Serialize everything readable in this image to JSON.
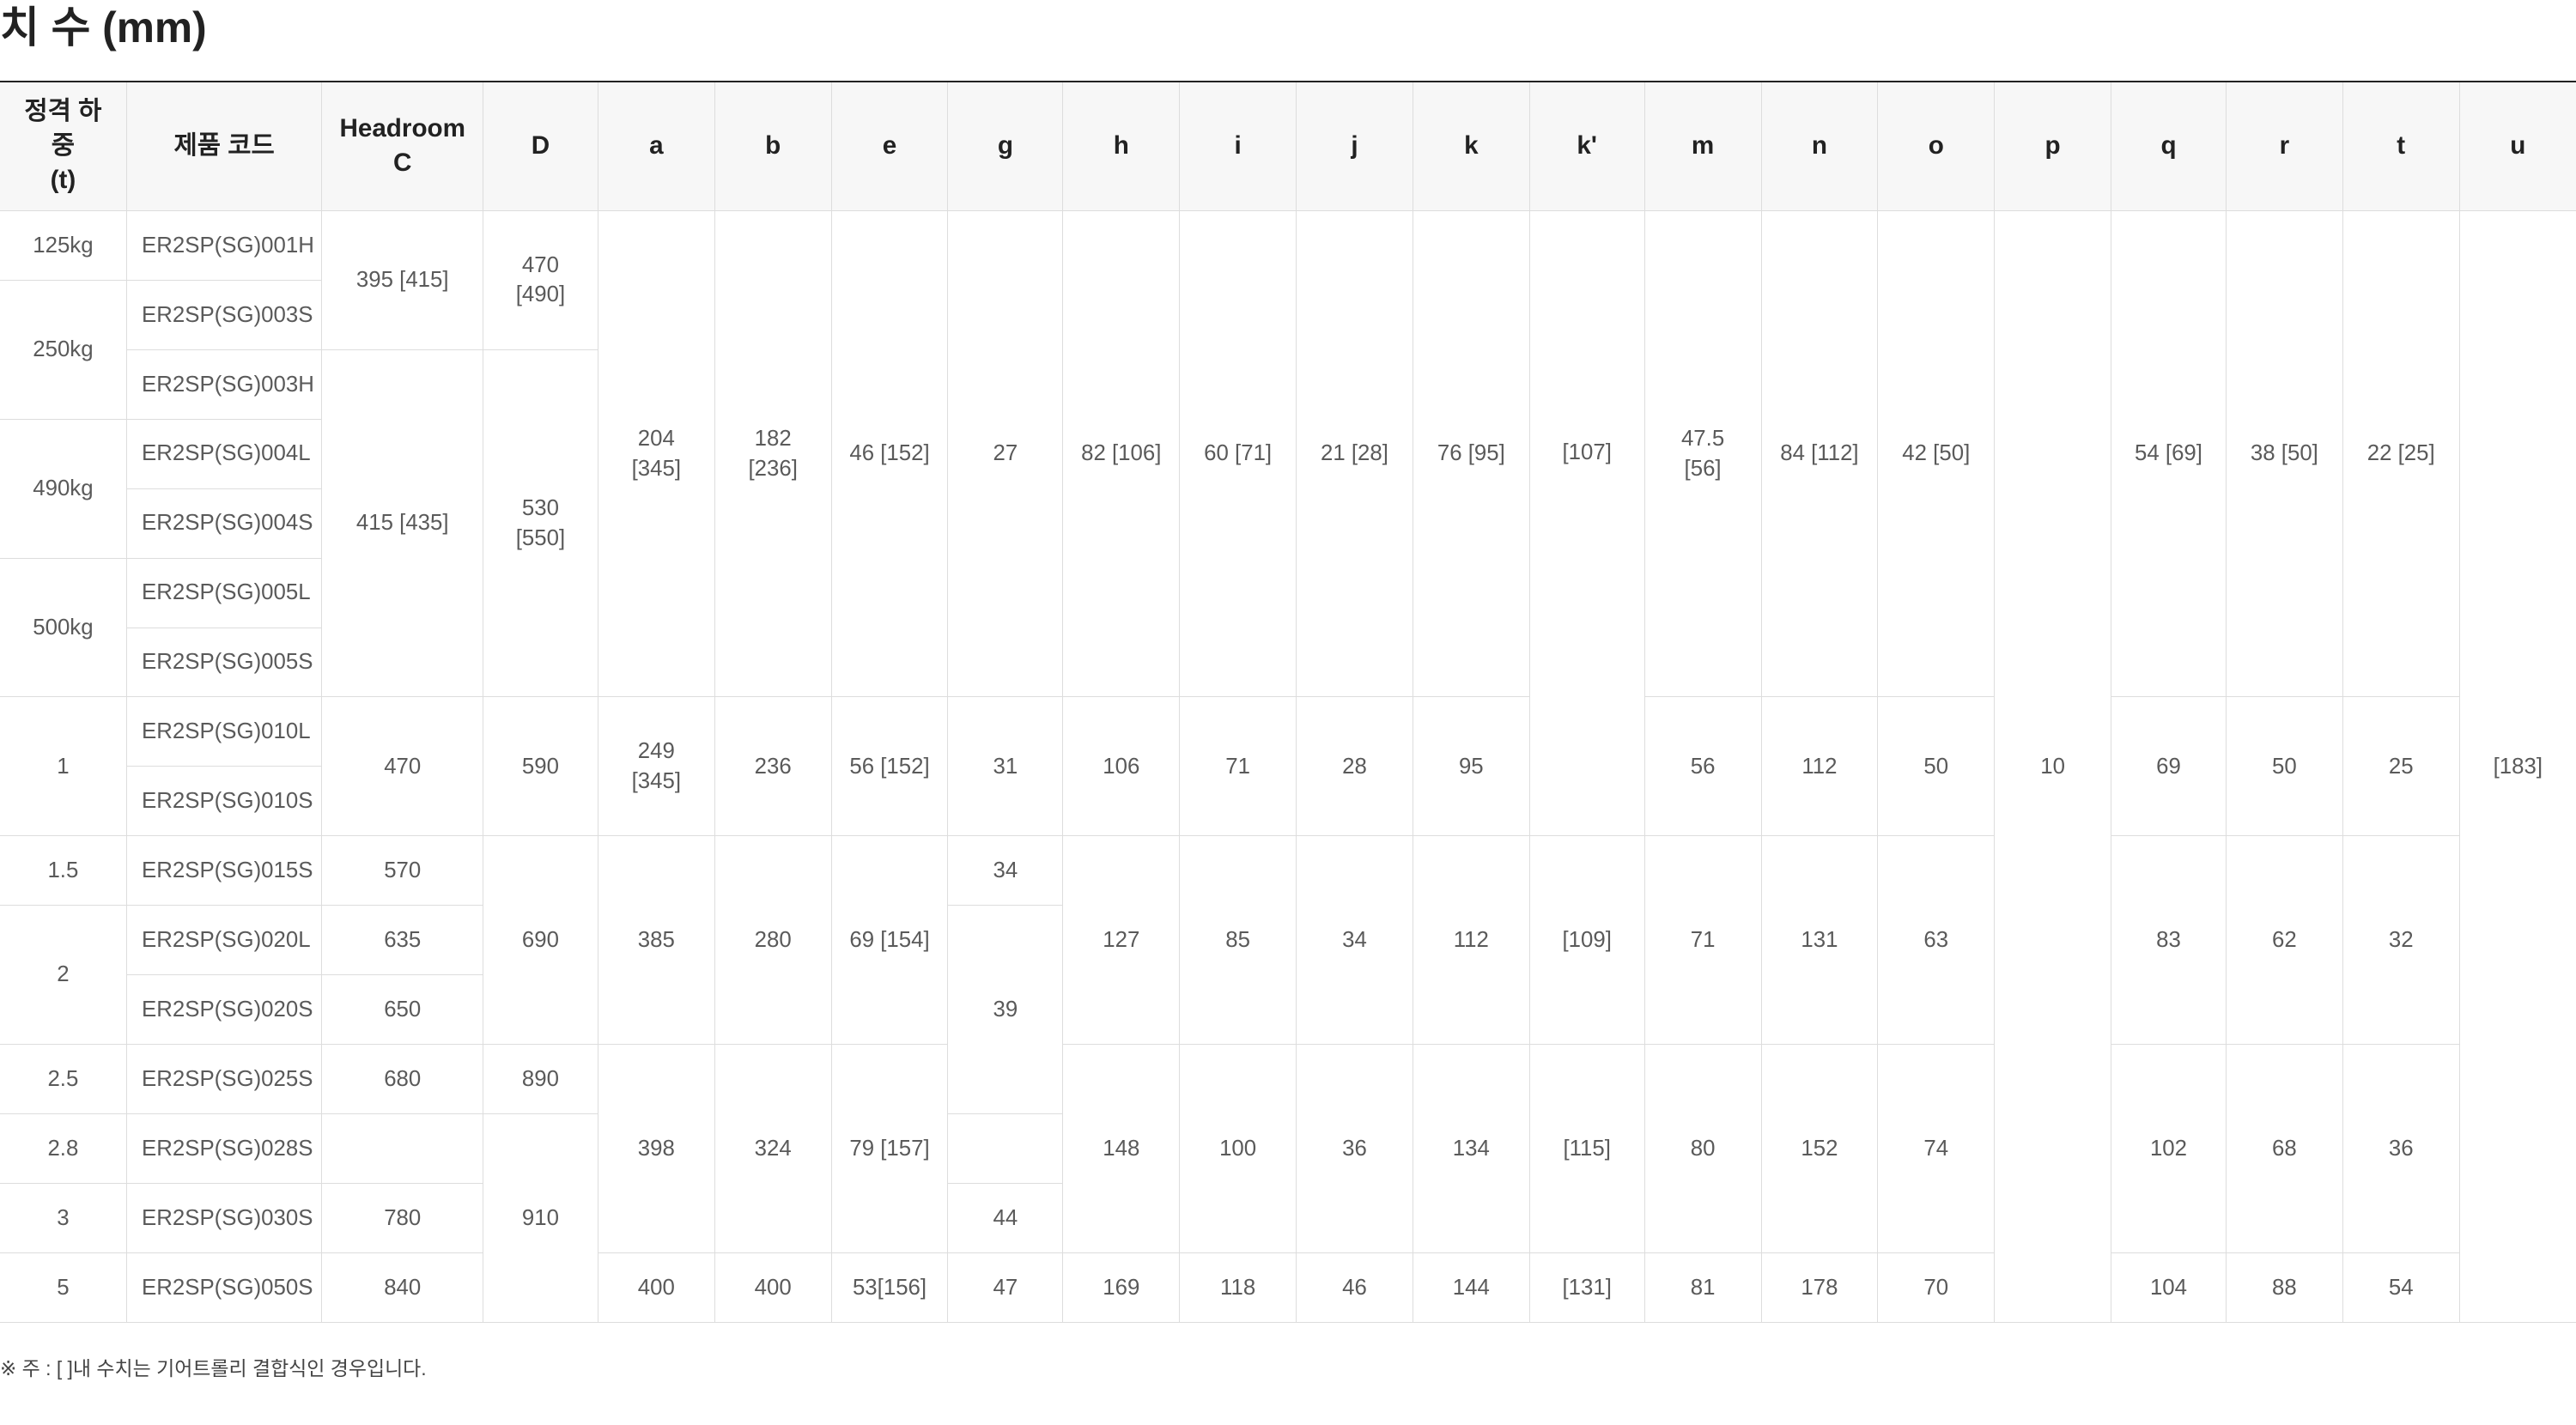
{
  "title": "치 수 (mm)",
  "table": {
    "headers": [
      "정격 하중\n(t)",
      "제품 코드",
      "Headroom\nC",
      "D",
      "a",
      "b",
      "e",
      "g",
      "h",
      "i",
      "j",
      "k",
      "k'",
      "m",
      "n",
      "o",
      "p",
      "q",
      "r",
      "t",
      "u"
    ],
    "rows": [
      [
        {
          "t": "125kg",
          "rs": 1
        },
        {
          "t": "ER2SP(SG)001H",
          "rs": 1
        },
        {
          "t": "395 [415]",
          "rs": 2
        },
        {
          "t": "470 [490]",
          "rs": 2
        },
        {
          "t": "204 [345]",
          "rs": 7
        },
        {
          "t": "182 [236]",
          "rs": 7
        },
        {
          "t": "46 [152]",
          "rs": 7
        },
        {
          "t": "27",
          "rs": 7
        },
        {
          "t": "82 [106]",
          "rs": 7
        },
        {
          "t": "60 [71]",
          "rs": 7
        },
        {
          "t": "21 [28]",
          "rs": 7
        },
        {
          "t": "76 [95]",
          "rs": 7
        },
        {
          "t": "[107]",
          "rs": 9,
          "kp": true
        },
        {
          "t": "47.5 [56]",
          "rs": 7
        },
        {
          "t": "84 [112]",
          "rs": 7
        },
        {
          "t": "42 [50]",
          "rs": 7
        },
        {
          "t": "10",
          "rs": 16
        },
        {
          "t": "54 [69]",
          "rs": 7
        },
        {
          "t": "38 [50]",
          "rs": 7
        },
        {
          "t": "22 [25]",
          "rs": 7
        },
        {
          "t": "[183]",
          "rs": 16
        }
      ],
      [
        {
          "t": "250kg",
          "rs": 2
        },
        {
          "t": "ER2SP(SG)003S",
          "rs": 1
        }
      ],
      [
        {
          "t": "ER2SP(SG)003H",
          "rs": 1
        },
        {
          "t": "415 [435]",
          "rs": 5
        },
        {
          "t": "530 [550]",
          "rs": 5
        }
      ],
      [
        {
          "t": "490kg",
          "rs": 2
        },
        {
          "t": "ER2SP(SG)004L",
          "rs": 1
        }
      ],
      [
        {
          "t": "ER2SP(SG)004S",
          "rs": 1
        }
      ],
      [
        {
          "t": "500kg",
          "rs": 2
        },
        {
          "t": "ER2SP(SG)005L",
          "rs": 1
        }
      ],
      [
        {
          "t": "ER2SP(SG)005S",
          "rs": 1
        }
      ],
      [
        {
          "t": "1",
          "rs": 2
        },
        {
          "t": "ER2SP(SG)010L",
          "rs": 1
        },
        {
          "t": "470",
          "rs": 2
        },
        {
          "t": "590",
          "rs": 2
        },
        {
          "t": "249 [345]",
          "rs": 2
        },
        {
          "t": "236",
          "rs": 2
        },
        {
          "t": "56 [152]",
          "rs": 2
        },
        {
          "t": "31",
          "rs": 2
        },
        {
          "t": "106",
          "rs": 2
        },
        {
          "t": "71",
          "rs": 2
        },
        {
          "t": "28",
          "rs": 2
        },
        {
          "t": "95",
          "rs": 2
        },
        {
          "t": "56",
          "rs": 2
        },
        {
          "t": "112",
          "rs": 2
        },
        {
          "t": "50",
          "rs": 2
        },
        {
          "t": "69",
          "rs": 2
        },
        {
          "t": "50",
          "rs": 2
        },
        {
          "t": "25",
          "rs": 2
        }
      ],
      [
        {
          "t": "ER2SP(SG)010S",
          "rs": 1
        }
      ],
      [
        {
          "t": "1.5",
          "rs": 1
        },
        {
          "t": "ER2SP(SG)015S",
          "rs": 1
        },
        {
          "t": "570",
          "rs": 1
        },
        {
          "t": "690",
          "rs": 3
        },
        {
          "t": "385",
          "rs": 3
        },
        {
          "t": "280",
          "rs": 3
        },
        {
          "t": "69 [154]",
          "rs": 3
        },
        {
          "t": "34",
          "rs": 1
        },
        {
          "t": "127",
          "rs": 3
        },
        {
          "t": "85",
          "rs": 3
        },
        {
          "t": "34",
          "rs": 3
        },
        {
          "t": "112",
          "rs": 3
        },
        {
          "t": "[109]",
          "rs": 3
        },
        {
          "t": "71",
          "rs": 3
        },
        {
          "t": "131",
          "rs": 3
        },
        {
          "t": "63",
          "rs": 3
        },
        {
          "t": "83",
          "rs": 3
        },
        {
          "t": "62",
          "rs": 3
        },
        {
          "t": "32",
          "rs": 3
        }
      ],
      [
        {
          "t": "2",
          "rs": 2
        },
        {
          "t": "ER2SP(SG)020L",
          "rs": 1
        },
        {
          "t": "635",
          "rs": 1
        },
        {
          "t": "39",
          "rs": 3
        }
      ],
      [
        {
          "t": "ER2SP(SG)020S",
          "rs": 1
        },
        {
          "t": "650",
          "rs": 1
        }
      ],
      [
        {
          "t": "2.5",
          "rs": 1
        },
        {
          "t": "ER2SP(SG)025S",
          "rs": 1
        },
        {
          "t": "680",
          "rs": 1
        },
        {
          "t": "890",
          "rs": 1
        },
        {
          "t": "398",
          "rs": 3
        },
        {
          "t": "324",
          "rs": 3
        },
        {
          "t": "79 [157]",
          "rs": 3
        },
        {
          "t": "148",
          "rs": 3
        },
        {
          "t": "100",
          "rs": 3
        },
        {
          "t": "36",
          "rs": 3
        },
        {
          "t": "134",
          "rs": 3
        },
        {
          "t": "[115]",
          "rs": 3
        },
        {
          "t": "80",
          "rs": 3
        },
        {
          "t": "152",
          "rs": 3
        },
        {
          "t": "74",
          "rs": 3
        },
        {
          "t": "102",
          "rs": 3
        },
        {
          "t": "68",
          "rs": 3
        },
        {
          "t": "36",
          "rs": 3
        }
      ],
      [
        {
          "t": "2.8",
          "rs": 1
        },
        {
          "t": "ER2SP(SG)028S",
          "rs": 1
        },
        {
          "t": "",
          "rs": 1
        },
        {
          "t": "910",
          "rs": 3
        },
        {
          "t": "",
          "rs": 1
        }
      ],
      [
        {
          "t": "3",
          "rs": 1
        },
        {
          "t": "ER2SP(SG)030S",
          "rs": 1
        },
        {
          "t": "780",
          "rs": 1
        },
        {
          "t": "44",
          "rs": 1
        }
      ],
      [
        {
          "t": "5",
          "rs": 1
        },
        {
          "t": "ER2SP(SG)050S",
          "rs": 1
        },
        {
          "t": "840",
          "rs": 1
        },
        {
          "t": "400",
          "rs": 1
        },
        {
          "t": "400",
          "rs": 1
        },
        {
          "t": "53[156]",
          "rs": 1
        },
        {
          "t": "47",
          "rs": 1
        },
        {
          "t": "169",
          "rs": 1
        },
        {
          "t": "118",
          "rs": 1
        },
        {
          "t": "46",
          "rs": 1
        },
        {
          "t": "144",
          "rs": 1
        },
        {
          "t": "[131]",
          "rs": 1
        },
        {
          "t": "81",
          "rs": 1
        },
        {
          "t": "178",
          "rs": 1
        },
        {
          "t": "70",
          "rs": 1
        },
        {
          "t": "104",
          "rs": 1
        },
        {
          "t": "88",
          "rs": 1
        },
        {
          "t": "54",
          "rs": 1
        }
      ]
    ]
  },
  "note": "※ 주 : [   ]내 수치는 기어트롤리 결합식인 경우입니다."
}
